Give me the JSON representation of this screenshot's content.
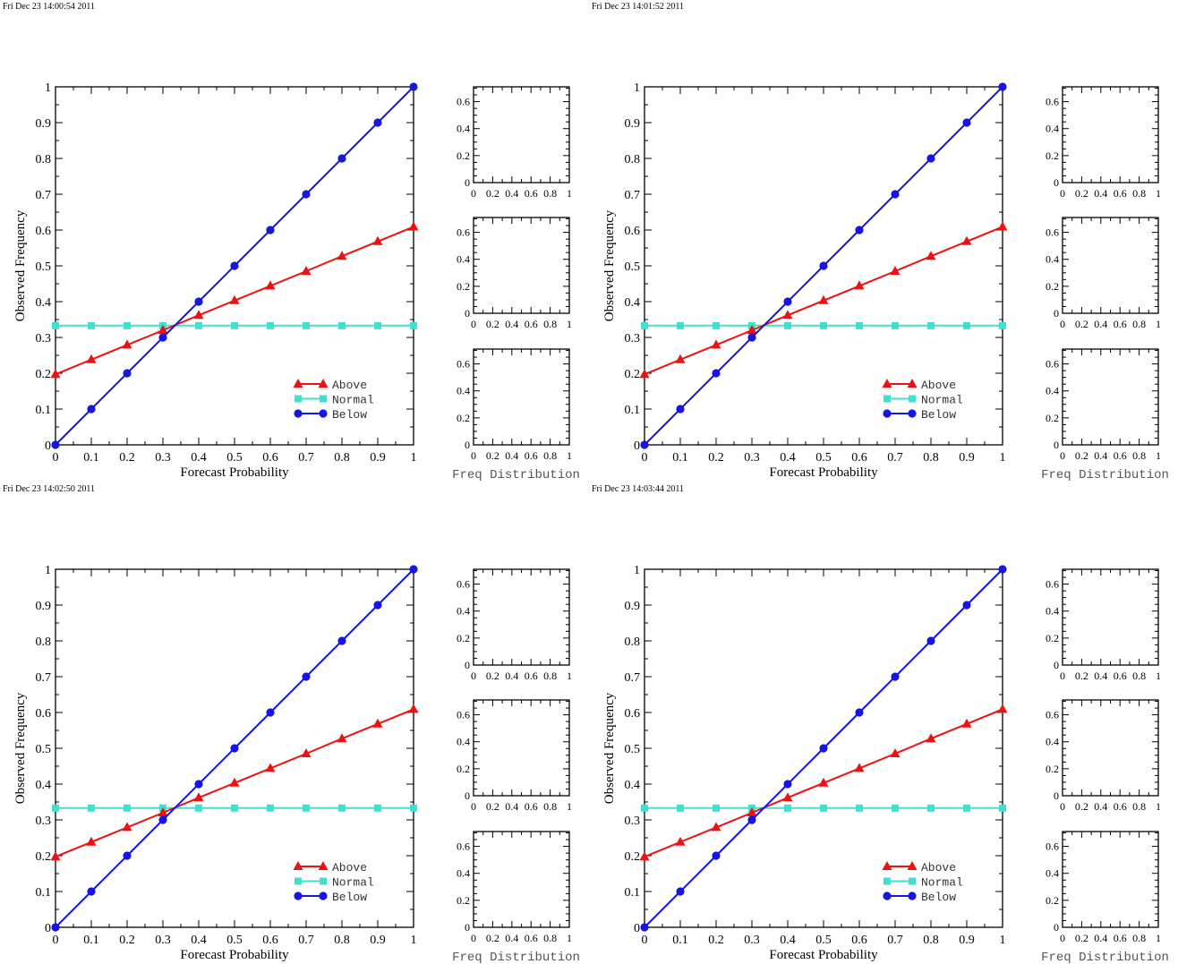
{
  "colors": {
    "above": "#ee1111",
    "normal": "#40e0d0",
    "below": "#1515e6"
  },
  "chart_data": [
    {
      "type": "line",
      "timestamp": "Fri Dec 23 14:00:54 2011",
      "xlabel": "Forecast Probability",
      "ylabel": "Observed Frequency",
      "xlim": [
        0,
        1
      ],
      "ylim": [
        0,
        1
      ],
      "ticks": [
        "0",
        "0.1",
        "0.2",
        "0.3",
        "0.4",
        "0.5",
        "0.6",
        "0.7",
        "0.8",
        "0.9",
        "1"
      ],
      "x": [
        0,
        0.1,
        0.2,
        0.3,
        0.4,
        0.5,
        0.6,
        0.7,
        0.8,
        0.9,
        1
      ],
      "series": [
        {
          "name": "Above",
          "marker": "triangle",
          "values": [
            0.197,
            0.238,
            0.279,
            0.32,
            0.362,
            0.403,
            0.444,
            0.485,
            0.527,
            0.568,
            0.609
          ]
        },
        {
          "name": "Normal",
          "marker": "square",
          "values": [
            0.333,
            0.333,
            0.333,
            0.333,
            0.333,
            0.333,
            0.333,
            0.333,
            0.333,
            0.333,
            0.333
          ]
        },
        {
          "name": "Below",
          "marker": "circle",
          "values": [
            0,
            0.1,
            0.2,
            0.3,
            0.4,
            0.5,
            0.6,
            0.7,
            0.8,
            0.9,
            1
          ]
        }
      ],
      "side_xlabel": "Freq Distribution",
      "side_xticks": [
        "0",
        "0.2",
        "0.4",
        "0.6",
        "0.8",
        "1"
      ],
      "side_yticks": [
        "0",
        "0.2",
        "0.4",
        "0.6"
      ]
    },
    {
      "type": "line",
      "timestamp": "Fri Dec 23 14:01:52 2011",
      "xlabel": "Forecast Probability",
      "ylabel": "Observed Frequency",
      "xlim": [
        0,
        1
      ],
      "ylim": [
        0,
        1
      ],
      "ticks": [
        "0",
        "0.1",
        "0.2",
        "0.3",
        "0.4",
        "0.5",
        "0.6",
        "0.7",
        "0.8",
        "0.9",
        "1"
      ],
      "x": [
        0,
        0.1,
        0.2,
        0.3,
        0.4,
        0.5,
        0.6,
        0.7,
        0.8,
        0.9,
        1
      ],
      "series": [
        {
          "name": "Above",
          "marker": "triangle",
          "values": [
            0.197,
            0.238,
            0.279,
            0.32,
            0.362,
            0.403,
            0.444,
            0.485,
            0.527,
            0.568,
            0.609
          ]
        },
        {
          "name": "Normal",
          "marker": "square",
          "values": [
            0.333,
            0.333,
            0.333,
            0.333,
            0.333,
            0.333,
            0.333,
            0.333,
            0.333,
            0.333,
            0.333
          ]
        },
        {
          "name": "Below",
          "marker": "circle",
          "values": [
            0,
            0.1,
            0.2,
            0.3,
            0.4,
            0.5,
            0.6,
            0.7,
            0.8,
            0.9,
            1
          ]
        }
      ],
      "side_xlabel": "Freq Distribution",
      "side_xticks": [
        "0",
        "0.2",
        "0.4",
        "0.6",
        "0.8",
        "1"
      ],
      "side_yticks": [
        "0",
        "0.2",
        "0.4",
        "0.6"
      ]
    },
    {
      "type": "line",
      "timestamp": "Fri Dec 23 14:02:50 2011",
      "xlabel": "Forecast Probability",
      "ylabel": "Observed Frequency",
      "xlim": [
        0,
        1
      ],
      "ylim": [
        0,
        1
      ],
      "ticks": [
        "0",
        "0.1",
        "0.2",
        "0.3",
        "0.4",
        "0.5",
        "0.6",
        "0.7",
        "0.8",
        "0.9",
        "1"
      ],
      "x": [
        0,
        0.1,
        0.2,
        0.3,
        0.4,
        0.5,
        0.6,
        0.7,
        0.8,
        0.9,
        1
      ],
      "series": [
        {
          "name": "Above",
          "marker": "triangle",
          "values": [
            0.197,
            0.238,
            0.279,
            0.32,
            0.362,
            0.403,
            0.444,
            0.485,
            0.527,
            0.568,
            0.609
          ]
        },
        {
          "name": "Normal",
          "marker": "square",
          "values": [
            0.333,
            0.333,
            0.333,
            0.333,
            0.333,
            0.333,
            0.333,
            0.333,
            0.333,
            0.333,
            0.333
          ]
        },
        {
          "name": "Below",
          "marker": "circle",
          "values": [
            0,
            0.1,
            0.2,
            0.3,
            0.4,
            0.5,
            0.6,
            0.7,
            0.8,
            0.9,
            1
          ]
        }
      ],
      "side_xlabel": "Freq Distribution",
      "side_xticks": [
        "0",
        "0.2",
        "0.4",
        "0.6",
        "0.8",
        "1"
      ],
      "side_yticks": [
        "0",
        "0.2",
        "0.4",
        "0.6"
      ]
    },
    {
      "type": "line",
      "timestamp": "Fri Dec 23 14:03:44 2011",
      "xlabel": "Forecast Probability",
      "ylabel": "Observed Frequency",
      "xlim": [
        0,
        1
      ],
      "ylim": [
        0,
        1
      ],
      "ticks": [
        "0",
        "0.1",
        "0.2",
        "0.3",
        "0.4",
        "0.5",
        "0.6",
        "0.7",
        "0.8",
        "0.9",
        "1"
      ],
      "x": [
        0,
        0.1,
        0.2,
        0.3,
        0.4,
        0.5,
        0.6,
        0.7,
        0.8,
        0.9,
        1
      ],
      "series": [
        {
          "name": "Above",
          "marker": "triangle",
          "values": [
            0.197,
            0.238,
            0.279,
            0.32,
            0.362,
            0.403,
            0.444,
            0.485,
            0.527,
            0.568,
            0.609
          ]
        },
        {
          "name": "Normal",
          "marker": "square",
          "values": [
            0.333,
            0.333,
            0.333,
            0.333,
            0.333,
            0.333,
            0.333,
            0.333,
            0.333,
            0.333,
            0.333
          ]
        },
        {
          "name": "Below",
          "marker": "circle",
          "values": [
            0,
            0.1,
            0.2,
            0.3,
            0.4,
            0.5,
            0.6,
            0.7,
            0.8,
            0.9,
            1
          ]
        }
      ],
      "side_xlabel": "Freq Distribution",
      "side_xticks": [
        "0",
        "0.2",
        "0.4",
        "0.6",
        "0.8",
        "1"
      ],
      "side_yticks": [
        "0",
        "0.2",
        "0.4",
        "0.6"
      ]
    }
  ]
}
